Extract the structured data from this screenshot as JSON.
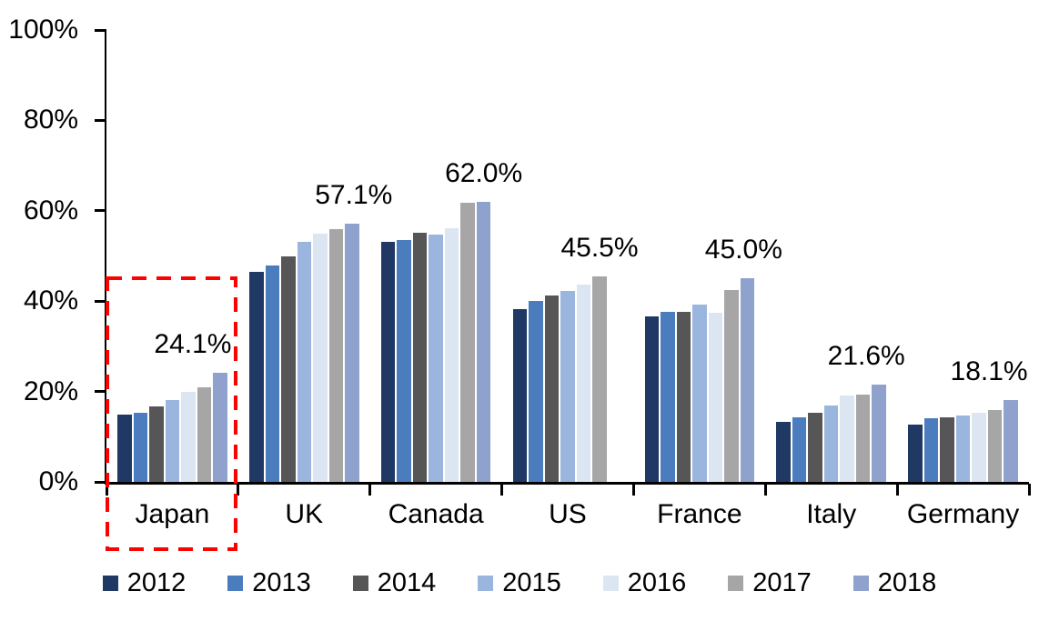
{
  "chart_data": {
    "type": "bar",
    "title": "",
    "xlabel": "",
    "ylabel": "",
    "grid": false,
    "categories": [
      "Japan",
      "UK",
      "Canada",
      "US",
      "France",
      "Italy",
      "Germany"
    ],
    "series": [
      {
        "name": "2012",
        "color": "#1F3864",
        "values": [
          14.8,
          46.5,
          53.1,
          38.2,
          36.6,
          13.3,
          12.7
        ]
      },
      {
        "name": "2013",
        "color": "#4B7CBE",
        "values": [
          15.2,
          47.9,
          53.6,
          40.1,
          37.7,
          14.3,
          14.1
        ]
      },
      {
        "name": "2014",
        "color": "#565656",
        "values": [
          16.8,
          49.9,
          55.2,
          41.2,
          37.7,
          15.3,
          14.3
        ]
      },
      {
        "name": "2015",
        "color": "#9AB5DE",
        "values": [
          18.2,
          53.2,
          54.8,
          42.3,
          39.2,
          16.9,
          14.7
        ]
      },
      {
        "name": "2016",
        "color": "#DCE6F2",
        "values": [
          20.0,
          54.9,
          56.1,
          43.7,
          37.4,
          19.1,
          15.3
        ]
      },
      {
        "name": "2017",
        "color": "#A6A6A6",
        "values": [
          21.0,
          55.9,
          61.8,
          45.5,
          42.5,
          19.3,
          15.9
        ]
      },
      {
        "name": "2018",
        "color": "#8FA2CD",
        "values": [
          24.1,
          57.1,
          62.0,
          null,
          45.0,
          21.6,
          18.1
        ]
      }
    ],
    "y_axis": {
      "min": 0,
      "max": 100,
      "tick_values": [
        0,
        20,
        40,
        60,
        80,
        100
      ],
      "tick_labels": [
        "0%",
        "20%",
        "40%",
        "60%",
        "80%",
        "100%"
      ]
    },
    "data_labels": [
      {
        "category": "Japan",
        "text": "24.1%",
        "value": 24.1,
        "series": "2018",
        "slot": 6,
        "dx": -30
      },
      {
        "category": "UK",
        "text": "57.1%",
        "value": 57.1,
        "series": "2018",
        "slot": 6,
        "dx": 2
      },
      {
        "category": "Canada",
        "text": "62.0%",
        "value": 62.0,
        "series": "2018",
        "slot": 6,
        "dx": 0
      },
      {
        "category": "US",
        "text": "45.5%",
        "value": 45.5,
        "series": "2017",
        "slot": 5,
        "dx": 0
      },
      {
        "category": "France",
        "text": "45.0%",
        "value": 45.0,
        "series": "2018",
        "slot": 6,
        "dx": -4
      },
      {
        "category": "Italy",
        "text": "21.6%",
        "value": 21.6,
        "series": "2018",
        "slot": 6,
        "dx": -14
      },
      {
        "category": "Germany",
        "text": "18.1%",
        "value": 18.1,
        "series": "2018",
        "slot": 6,
        "dx": -24
      }
    ],
    "legend": {
      "position": "bottom",
      "items": [
        "2012",
        "2013",
        "2014",
        "2015",
        "2016",
        "2017",
        "2018"
      ]
    },
    "highlight_box": {
      "target": "Japan",
      "color": "#FE0000",
      "style": "dashed"
    }
  }
}
